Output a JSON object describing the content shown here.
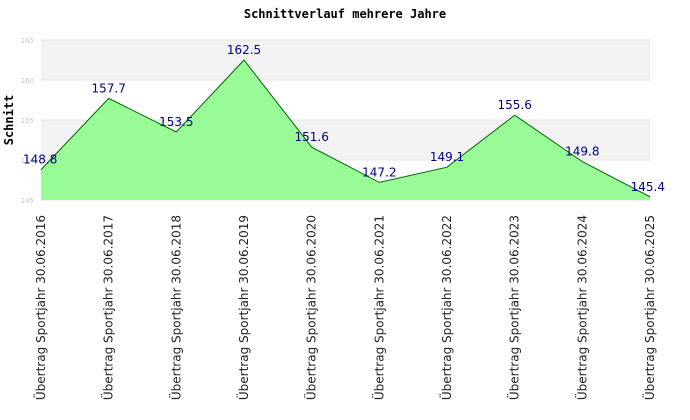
{
  "chart_data": {
    "type": "area",
    "title": "Schnittverlauf mehrere Jahre",
    "ylabel": "Schnitt",
    "xlabel": "",
    "ylim": [
      145,
      165
    ],
    "yticks": [
      "145",
      "150",
      "155",
      "160",
      "165"
    ],
    "categories": [
      "Übertrag Sportjahr 30.06.2016",
      "Übertrag Sportjahr 30.06.2017",
      "Übertrag Sportjahr 30.06.2018",
      "Übertrag Sportjahr 30.06.2019",
      "Übertrag Sportjahr 30.06.2020",
      "Übertrag Sportjahr 30.06.2021",
      "Übertrag Sportjahr 30.06.2022",
      "Übertrag Sportjahr 30.06.2023",
      "Übertrag Sportjahr 30.06.2024",
      "Übertrag Sportjahr 30.06.2025"
    ],
    "values": [
      148.8,
      157.7,
      153.5,
      162.5,
      151.6,
      147.2,
      149.1,
      155.6,
      149.8,
      145.4
    ],
    "value_labels": [
      "148.8",
      "157.7",
      "153.5",
      "162.5",
      "151.6",
      "147.2",
      "149.1",
      "155.6",
      "149.8",
      "145.4"
    ],
    "fill_color": "#98fb98",
    "line_color": "#006400",
    "label_color": "#000080",
    "grid": true,
    "band_colors": [
      "#f2f2f2",
      "#ffffff"
    ]
  }
}
